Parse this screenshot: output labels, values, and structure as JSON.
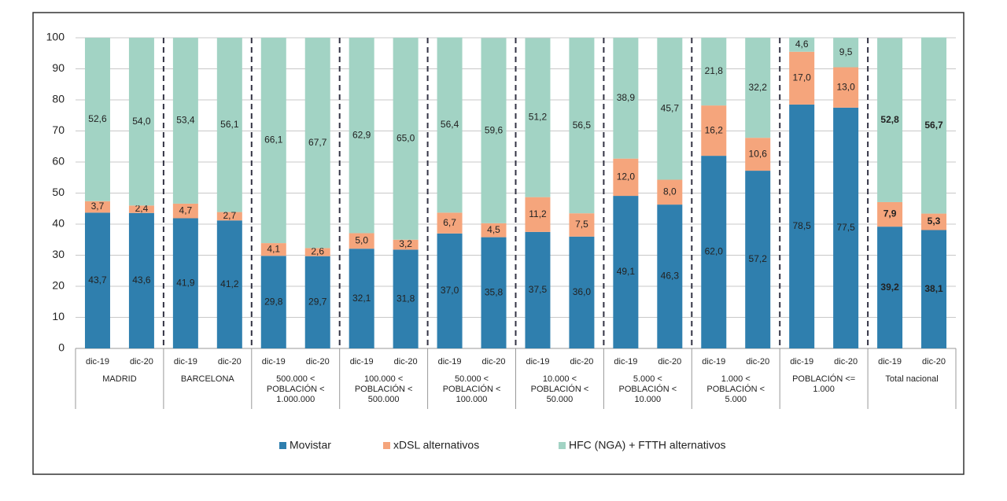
{
  "chart_data": {
    "type": "stacked_bar",
    "categories": [
      "dic-19",
      "dic-20",
      "dic-19",
      "dic-20",
      "dic-19",
      "dic-20",
      "dic-19",
      "dic-20",
      "dic-19",
      "dic-20",
      "dic-19",
      "dic-20",
      "dic-19",
      "dic-20",
      "dic-19",
      "dic-20",
      "dic-19",
      "dic-20",
      "dic-19",
      "dic-20"
    ],
    "groups": [
      [
        "MADRID"
      ],
      [
        "BARCELONA"
      ],
      [
        "500.000 <",
        "POBLACIÓN <",
        "1.000.000"
      ],
      [
        "100.000 <",
        "POBLACIÓN <",
        "500.000"
      ],
      [
        "50.000 <",
        "POBLACIÓN <",
        "100.000"
      ],
      [
        "10.000 <",
        "POBLACIÓN <",
        "50.000"
      ],
      [
        "5.000 <",
        "POBLACIÓN <",
        "10.000"
      ],
      [
        "1.000 <",
        "POBLACIÓN <",
        "5.000"
      ],
      [
        "POBLACIÓN <=",
        "1.000"
      ],
      [
        "Total nacional"
      ]
    ],
    "series": [
      {
        "name": "Movistar",
        "color": "#2f7fae",
        "values": [
          43.7,
          43.6,
          41.9,
          41.2,
          29.8,
          29.7,
          32.1,
          31.8,
          37.0,
          35.8,
          37.5,
          36.0,
          49.1,
          46.3,
          62.0,
          57.2,
          78.5,
          77.5,
          39.2,
          38.1
        ],
        "value_labels": [
          "43,7",
          "43,6",
          "41,9",
          "41,2",
          "29,8",
          "29,7",
          "32,1",
          "31,8",
          "37,0",
          "35,8",
          "37,5",
          "36,0",
          "49,1",
          "46,3",
          "62,0",
          "57,2",
          "78,5",
          "77,5",
          "39,2",
          "38,1"
        ]
      },
      {
        "name": "xDSL alternativos",
        "color": "#f5a57c",
        "values": [
          3.7,
          2.4,
          4.7,
          2.7,
          4.1,
          2.6,
          5.0,
          3.2,
          6.7,
          4.5,
          11.2,
          7.5,
          12.0,
          8.0,
          16.2,
          10.6,
          17.0,
          13.0,
          7.9,
          5.3
        ],
        "value_labels": [
          "3,7",
          "2,4",
          "4,7",
          "2,7",
          "4,1",
          "2,6",
          "5,0",
          "3,2",
          "6,7",
          "4,5",
          "11,2",
          "7,5",
          "12,0",
          "8,0",
          "16,2",
          "10,6",
          "17,0",
          "13,0",
          "7,9",
          "5,3"
        ]
      },
      {
        "name": "HFC (NGA) + FTTH alternativos",
        "color": "#a2d3c4",
        "values": [
          52.6,
          54.0,
          53.4,
          56.1,
          66.1,
          67.7,
          62.9,
          65.0,
          56.4,
          59.6,
          51.2,
          56.5,
          38.9,
          45.7,
          21.8,
          32.2,
          4.6,
          9.5,
          52.8,
          56.7
        ],
        "value_labels": [
          "52,6",
          "54,0",
          "53,4",
          "56,1",
          "66,1",
          "67,7",
          "62,9",
          "65,0",
          "56,4",
          "59,6",
          "51,2",
          "56,5",
          "38,9",
          "45,7",
          "21,8",
          "32,2",
          "4,6",
          "9,5",
          "52,8",
          "56,7"
        ]
      }
    ],
    "ylim": [
      0,
      100
    ],
    "yticks": [
      0,
      10,
      20,
      30,
      40,
      50,
      60,
      70,
      80,
      90,
      100
    ],
    "grid": true
  }
}
